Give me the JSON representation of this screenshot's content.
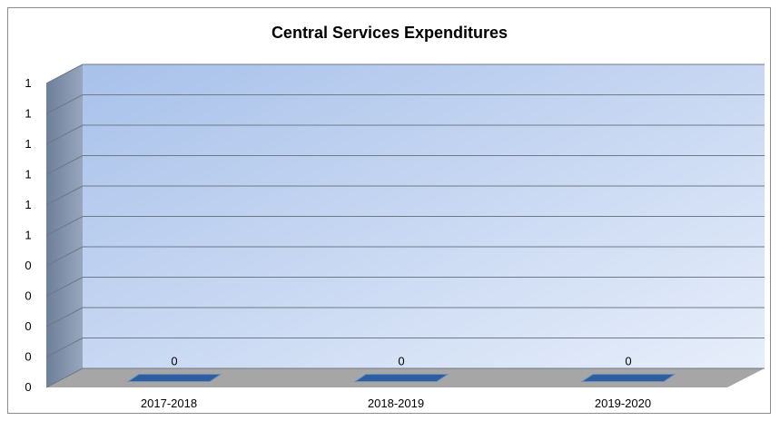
{
  "chart_data": {
    "type": "bar",
    "title": "Central Services Expenditures",
    "categories": [
      "2017-2018",
      "2018-2019",
      "2019-2020"
    ],
    "values": [
      0,
      0,
      0
    ],
    "data_labels": [
      "0",
      "0",
      "0"
    ],
    "y_tick_labels": [
      "0",
      "0",
      "0",
      "0",
      "0",
      "1",
      "1",
      "1",
      "1",
      "1",
      "1"
    ],
    "ylim": [
      0,
      1
    ],
    "grid": true,
    "legend": "none",
    "three_d": true,
    "colors": {
      "bar": "#2e5f9c",
      "wall_top": "#a8c1ea",
      "wall_bottom": "#e7eefa",
      "side_wall": "#7d8da6",
      "floor": "#a6a6a6",
      "gridline": "#707a86"
    }
  }
}
